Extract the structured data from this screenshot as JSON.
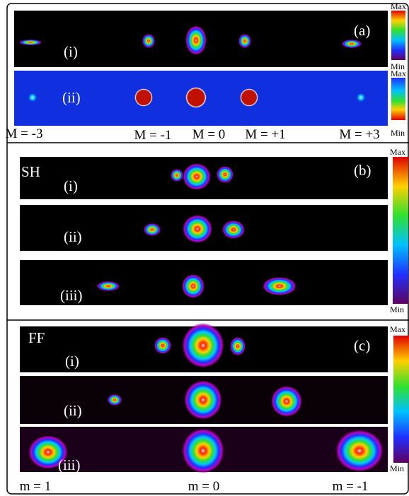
{
  "panels": [
    {
      "label": "(a)",
      "rows": [
        "(i)",
        "(ii)"
      ],
      "colorbars": [
        {
          "max": "Max",
          "min": "Min"
        },
        {
          "max": "Max",
          "min": "Min"
        }
      ],
      "orders": [
        "M = -3",
        "M = -1",
        "M = 0",
        "M = +1",
        "M = +3"
      ]
    },
    {
      "label": "(b)",
      "title": "SH",
      "rows": [
        "(i)",
        "(ii)",
        "(iii)"
      ],
      "colorbar": {
        "max": "Max",
        "min": "Min"
      }
    },
    {
      "label": "(c)",
      "title": "FF",
      "rows": [
        "(i)",
        "(ii)",
        "(iii)"
      ],
      "colorbar": {
        "max": "Max",
        "min": "Min"
      },
      "orders": [
        "m = 1",
        "m = 0",
        "m = -1"
      ]
    }
  ]
}
